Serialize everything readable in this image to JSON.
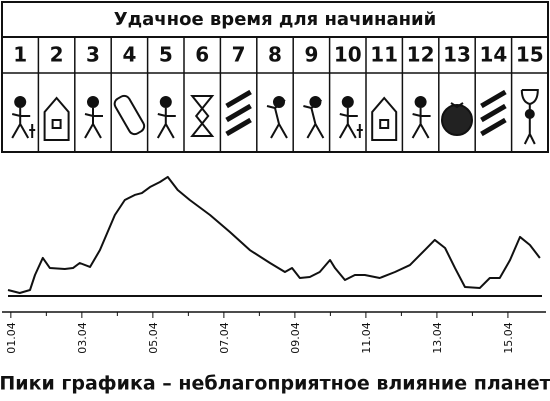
{
  "table": {
    "title": "Удачное время для начинаний",
    "days": [
      1,
      2,
      3,
      4,
      5,
      6,
      7,
      8,
      9,
      10,
      11,
      12,
      13,
      14,
      15
    ]
  },
  "chart_data": {
    "type": "line",
    "title": "Пики графика – неблагоприятное влияние планет",
    "x": [
      0.92,
      1.25,
      1.54,
      1.68,
      1.9,
      2.1,
      2.52,
      2.75,
      2.94,
      3.23,
      3.51,
      3.93,
      4.21,
      4.49,
      4.69,
      4.92,
      5.2,
      5.42,
      5.7,
      6.04,
      6.61,
      7.17,
      7.73,
      8.3,
      8.72,
      8.92,
      9.14,
      9.42,
      9.7,
      9.99,
      10.13,
      10.41,
      10.69,
      10.97,
      11.39,
      11.82,
      12.24,
      12.66,
      12.94,
      13.23,
      13.51,
      13.79,
      14.21,
      14.49,
      14.77,
      15.06,
      15.34,
      15.62,
      15.9
    ],
    "values": [
      5,
      2.5,
      5,
      17.5,
      31.7,
      23.3,
      22.5,
      23.3,
      27.5,
      24.2,
      38.3,
      67.5,
      80,
      84.2,
      85.8,
      90.8,
      95,
      99.2,
      88.3,
      80,
      67.5,
      53.3,
      38.3,
      27.5,
      20,
      23.3,
      15,
      15.8,
      20,
      30,
      23.3,
      13.3,
      17.5,
      17.5,
      15,
      20,
      25.8,
      38.3,
      46.7,
      40,
      23.3,
      7.5,
      6.7,
      15,
      15,
      30,
      49.2,
      42.5,
      31.7
    ],
    "color": "#111111",
    "xlim": [
      0.92,
      15.96
    ],
    "ylim": [
      0,
      100
    ],
    "xticks": [
      {
        "value": 1,
        "label": "01.04"
      },
      {
        "value": 3,
        "label": "03.04"
      },
      {
        "value": 5,
        "label": "05.04"
      },
      {
        "value": 7,
        "label": "07.04"
      },
      {
        "value": 9,
        "label": "09.04"
      },
      {
        "value": 11,
        "label": "11.04"
      },
      {
        "value": 13,
        "label": "13.04"
      },
      {
        "value": 15,
        "label": "15.04"
      }
    ],
    "minor_xticks": [
      2,
      4,
      6,
      8,
      10,
      12,
      14
    ]
  }
}
